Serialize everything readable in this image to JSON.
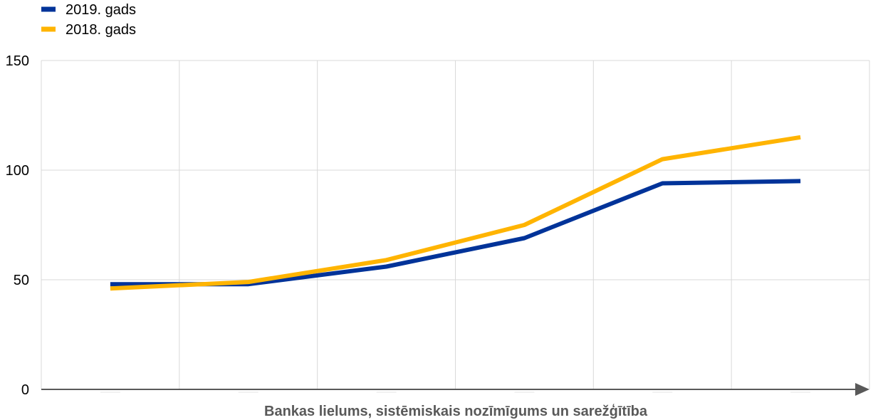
{
  "chart_data": {
    "type": "line",
    "title": "",
    "xlabel": "Bankas lielums, sistēmiskais nozīmīgums un sarežģītība",
    "ylabel": "",
    "ylim": [
      0,
      150
    ],
    "yticks": [
      0,
      50,
      100,
      150
    ],
    "grid": true,
    "legend_position": "top-left",
    "categories": [
      "1",
      "2",
      "3",
      "4",
      "5",
      "6"
    ],
    "series": [
      {
        "name": "2019. gads",
        "color": "#003399",
        "values": [
          48,
          48,
          56,
          69,
          94,
          95
        ]
      },
      {
        "name": "2018. gads",
        "color": "#FFB400",
        "values": [
          46,
          49,
          59,
          75,
          105,
          115
        ]
      }
    ]
  }
}
